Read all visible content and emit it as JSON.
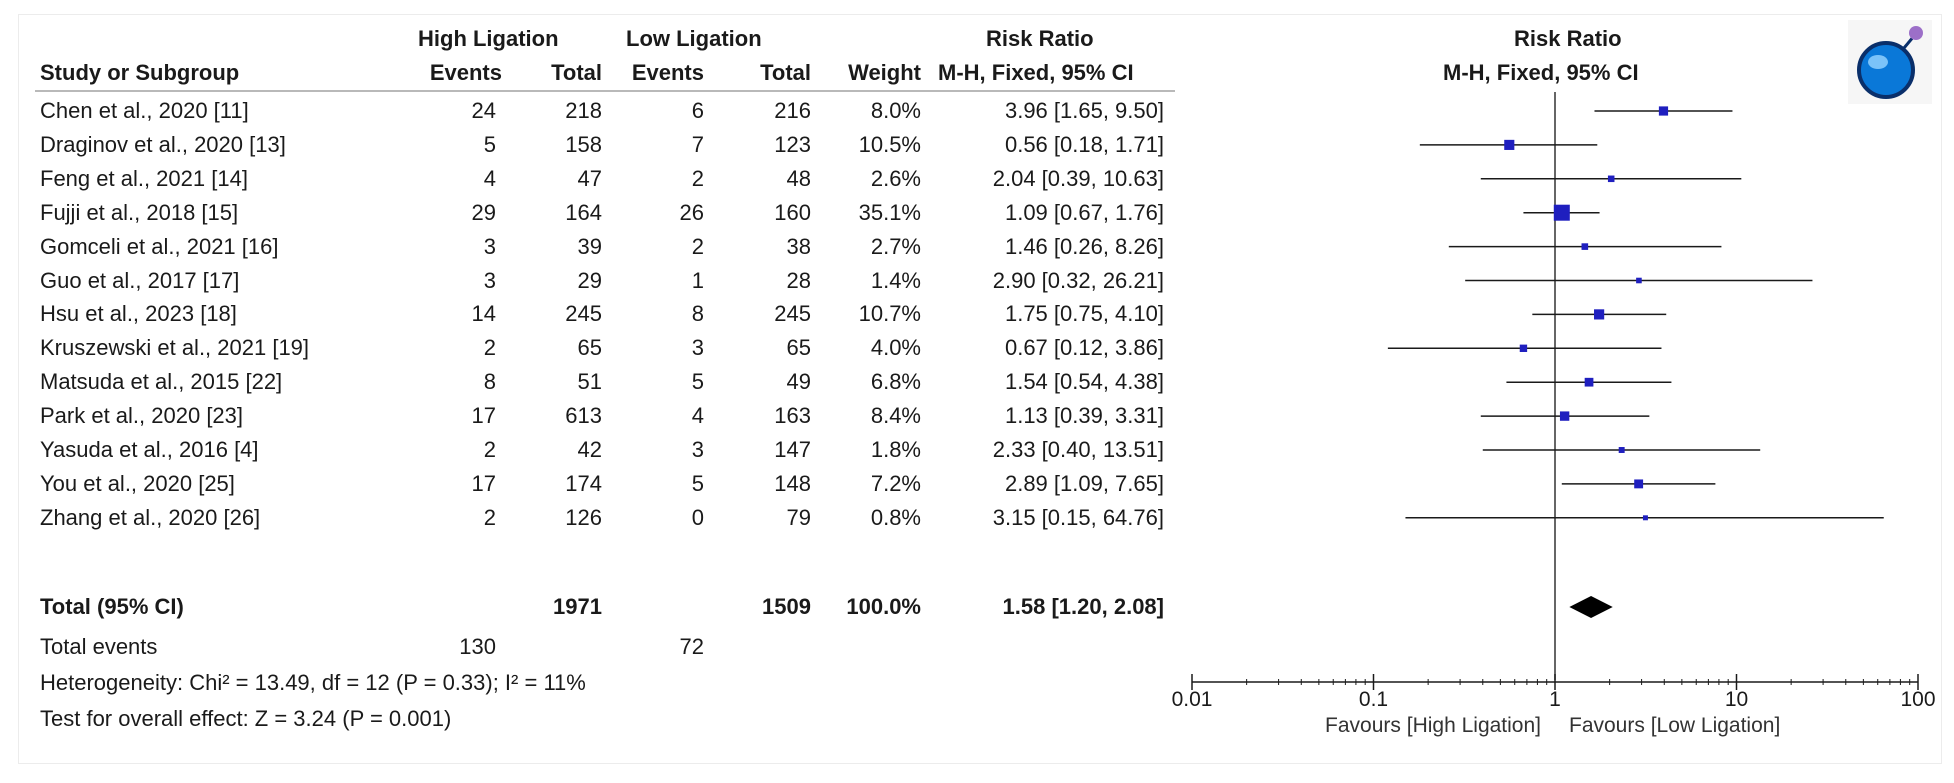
{
  "header": {
    "group_high": "High Ligation",
    "group_low": "Low Ligation",
    "col_study": "Study or Subgroup",
    "col_events": "Events",
    "col_total": "Total",
    "col_weight": "Weight",
    "rr_title": "Risk Ratio",
    "rr_method": "M-H, Fixed, 95% CI",
    "plot_title": "Risk Ratio",
    "plot_method": "M-H, Fixed, 95% CI"
  },
  "studies": [
    {
      "study": "Chen et al., 2020 [11]",
      "he": "24",
      "ht": "218",
      "le": "6",
      "lt": "216",
      "weight": "8.0%",
      "ci": "3.96 [1.65, 9.50]",
      "rr": 3.96,
      "lo": 1.65,
      "hi": 9.5,
      "w": 8.0
    },
    {
      "study": "Draginov et al., 2020 [13]",
      "he": "5",
      "ht": "158",
      "le": "7",
      "lt": "123",
      "weight": "10.5%",
      "ci": "0.56 [0.18, 1.71]",
      "rr": 0.56,
      "lo": 0.18,
      "hi": 1.71,
      "w": 10.5
    },
    {
      "study": "Feng et al., 2021 [14]",
      "he": "4",
      "ht": "47",
      "le": "2",
      "lt": "48",
      "weight": "2.6%",
      "ci": "2.04 [0.39, 10.63]",
      "rr": 2.04,
      "lo": 0.39,
      "hi": 10.63,
      "w": 2.6
    },
    {
      "study": "Fujji et al., 2018 [15]",
      "he": "29",
      "ht": "164",
      "le": "26",
      "lt": "160",
      "weight": "35.1%",
      "ci": "1.09 [0.67, 1.76]",
      "rr": 1.09,
      "lo": 0.67,
      "hi": 1.76,
      "w": 35.1
    },
    {
      "study": "Gomceli et al., 2021 [16]",
      "he": "3",
      "ht": "39",
      "le": "2",
      "lt": "38",
      "weight": "2.7%",
      "ci": "1.46 [0.26, 8.26]",
      "rr": 1.46,
      "lo": 0.26,
      "hi": 8.26,
      "w": 2.7
    },
    {
      "study": "Guo et al., 2017 [17]",
      "he": "3",
      "ht": "29",
      "le": "1",
      "lt": "28",
      "weight": "1.4%",
      "ci": "2.90 [0.32, 26.21]",
      "rr": 2.9,
      "lo": 0.32,
      "hi": 26.21,
      "w": 1.4
    },
    {
      "study": "Hsu et al., 2023 [18]",
      "he": "14",
      "ht": "245",
      "le": "8",
      "lt": "245",
      "weight": "10.7%",
      "ci": "1.75 [0.75, 4.10]",
      "rr": 1.75,
      "lo": 0.75,
      "hi": 4.1,
      "w": 10.7
    },
    {
      "study": "Kruszewski et al., 2021 [19]",
      "he": "2",
      "ht": "65",
      "le": "3",
      "lt": "65",
      "weight": "4.0%",
      "ci": "0.67 [0.12, 3.86]",
      "rr": 0.67,
      "lo": 0.12,
      "hi": 3.86,
      "w": 4.0
    },
    {
      "study": "Matsuda et al., 2015 [22]",
      "he": "8",
      "ht": "51",
      "le": "5",
      "lt": "49",
      "weight": "6.8%",
      "ci": "1.54 [0.54, 4.38]",
      "rr": 1.54,
      "lo": 0.54,
      "hi": 4.38,
      "w": 6.8
    },
    {
      "study": "Park et al., 2020 [23]",
      "he": "17",
      "ht": "613",
      "le": "4",
      "lt": "163",
      "weight": "8.4%",
      "ci": "1.13 [0.39, 3.31]",
      "rr": 1.13,
      "lo": 0.39,
      "hi": 3.31,
      "w": 8.4
    },
    {
      "study": "Yasuda et al., 2016 [4]",
      "he": "2",
      "ht": "42",
      "le": "3",
      "lt": "147",
      "weight": "1.8%",
      "ci": "2.33 [0.40, 13.51]",
      "rr": 2.33,
      "lo": 0.4,
      "hi": 13.51,
      "w": 1.8
    },
    {
      "study": "You et al., 2020 [25]",
      "he": "17",
      "ht": "174",
      "le": "5",
      "lt": "148",
      "weight": "7.2%",
      "ci": "2.89 [1.09, 7.65]",
      "rr": 2.89,
      "lo": 1.09,
      "hi": 7.65,
      "w": 7.2
    },
    {
      "study": "Zhang et al., 2020 [26]",
      "he": "2",
      "ht": "126",
      "le": "0",
      "lt": "79",
      "weight": "0.8%",
      "ci": "3.15 [0.15, 64.76]",
      "rr": 3.15,
      "lo": 0.15,
      "hi": 64.76,
      "w": 0.8
    }
  ],
  "total": {
    "label": "Total (95% CI)",
    "ht": "1971",
    "lt": "1509",
    "weight": "100.0%",
    "ci": "1.58 [1.20, 2.08]",
    "rr": 1.58,
    "lo": 1.2,
    "hi": 2.08
  },
  "total_events": {
    "label": "Total events",
    "he": "130",
    "le": "72"
  },
  "heterogeneity": "Heterogeneity: Chi² = 13.49, df = 12 (P = 0.33); I² = 11%",
  "overall_effect": "Test for overall effect: Z = 3.24 (P = 0.001)",
  "chart_data": {
    "type": "scatter",
    "title": "Risk Ratio",
    "subtitle": "M-H, Fixed, 95% CI",
    "xscale": "log",
    "xlim": [
      0.01,
      100
    ],
    "xticks": [
      "0.01",
      "0.1",
      "1",
      "10",
      "100"
    ],
    "reference_line": 1,
    "favours_left": "Favours [High Ligation]",
    "favours_right": "Favours [Low Ligation]",
    "marker_color": "#1f1fbf",
    "summary_color": "#000000"
  },
  "icons": {
    "logo": "revman-logo-icon"
  }
}
